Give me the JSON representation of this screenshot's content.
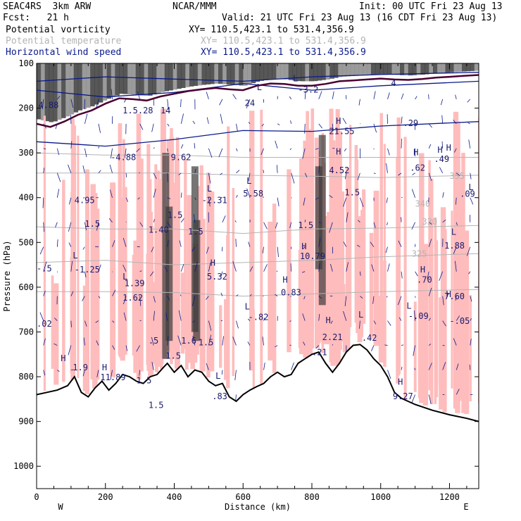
{
  "header": {
    "model": "SEAC4RS  3km ARW",
    "org": "NCAR/MMM",
    "init": "Init: 00 UTC Fri 23 Aug 13",
    "fcst": "Fcst:   21 h",
    "valid": "Valid: 21 UTC Fri 23 Aug 13 (16 CDT Fri 23 Aug 13)"
  },
  "legend": [
    {
      "label": "Potential vorticity",
      "xy": "XY= 110.5,423.1 to 531.4,356.9",
      "color": "#000000"
    },
    {
      "label": "Potential temperature",
      "xy": "XY= 110.5,423.1 to 531.4,356.9",
      "color": "#b4b4b4"
    },
    {
      "label": "Horizontal wind speed",
      "xy": "XY= 110.5,423.1 to 531.4,356.9",
      "color": "#0a1a8c"
    }
  ],
  "colors": {
    "pv_fill": "#ffbcbc",
    "pv_contour": "#4a0030",
    "theta": "#b4b4b4",
    "wind": "#0a1a8c",
    "terrain": "#000000"
  },
  "chart_data": {
    "type": "cross-section",
    "xlabel": "Distance (km)",
    "ylabel": "Pressure (hPa)",
    "xlim": [
      0,
      1285
    ],
    "ylim": [
      1050,
      100
    ],
    "x_ticks": [
      0,
      200,
      400,
      600,
      800,
      1000,
      1200
    ],
    "y_ticks": [
      100,
      200,
      300,
      400,
      500,
      600,
      700,
      800,
      900,
      1000
    ],
    "x_end_labels": {
      "left": "W",
      "right": "E"
    },
    "terrain_pressure": [
      [
        0,
        840
      ],
      [
        30,
        835
      ],
      [
        60,
        830
      ],
      [
        90,
        820
      ],
      [
        110,
        800
      ],
      [
        130,
        835
      ],
      [
        150,
        845
      ],
      [
        170,
        825
      ],
      [
        190,
        810
      ],
      [
        210,
        830
      ],
      [
        230,
        815
      ],
      [
        250,
        795
      ],
      [
        270,
        800
      ],
      [
        290,
        810
      ],
      [
        310,
        815
      ],
      [
        330,
        800
      ],
      [
        350,
        795
      ],
      [
        370,
        778
      ],
      [
        380,
        770
      ],
      [
        400,
        790
      ],
      [
        420,
        775
      ],
      [
        440,
        800
      ],
      [
        460,
        785
      ],
      [
        480,
        790
      ],
      [
        500,
        810
      ],
      [
        520,
        820
      ],
      [
        540,
        815
      ],
      [
        560,
        845
      ],
      [
        580,
        855
      ],
      [
        600,
        840
      ],
      [
        620,
        830
      ],
      [
        640,
        822
      ],
      [
        660,
        815
      ],
      [
        680,
        800
      ],
      [
        700,
        790
      ],
      [
        720,
        800
      ],
      [
        740,
        795
      ],
      [
        760,
        770
      ],
      [
        780,
        760
      ],
      [
        800,
        750
      ],
      [
        820,
        745
      ],
      [
        840,
        770
      ],
      [
        860,
        790
      ],
      [
        880,
        770
      ],
      [
        900,
        745
      ],
      [
        920,
        730
      ],
      [
        940,
        728
      ],
      [
        960,
        740
      ],
      [
        980,
        760
      ],
      [
        1000,
        775
      ],
      [
        1020,
        800
      ],
      [
        1040,
        835
      ],
      [
        1060,
        848
      ],
      [
        1100,
        862
      ],
      [
        1150,
        875
      ],
      [
        1200,
        885
      ],
      [
        1250,
        893
      ],
      [
        1285,
        900
      ]
    ],
    "tropopause_pressure": [
      [
        0,
        235
      ],
      [
        40,
        242
      ],
      [
        80,
        230
      ],
      [
        120,
        215
      ],
      [
        160,
        205
      ],
      [
        200,
        190
      ],
      [
        240,
        178
      ],
      [
        280,
        180
      ],
      [
        320,
        183
      ],
      [
        360,
        174
      ],
      [
        400,
        168
      ],
      [
        440,
        162
      ],
      [
        480,
        158
      ],
      [
        520,
        155
      ],
      [
        560,
        158
      ],
      [
        600,
        160
      ],
      [
        640,
        150
      ],
      [
        680,
        145
      ],
      [
        720,
        146
      ],
      [
        760,
        150
      ],
      [
        800,
        150
      ],
      [
        840,
        146
      ],
      [
        880,
        140
      ],
      [
        920,
        138
      ],
      [
        960,
        136
      ],
      [
        1000,
        134
      ],
      [
        1040,
        136
      ],
      [
        1080,
        137
      ],
      [
        1120,
        135
      ],
      [
        1160,
        132
      ],
      [
        1200,
        130
      ],
      [
        1240,
        128
      ],
      [
        1285,
        126
      ]
    ],
    "theta_contours": [
      {
        "label": "355",
        "label_at": [
          1200,
          358
        ],
        "pts": [
          [
            0,
            345
          ],
          [
            200,
            345
          ],
          [
            400,
            345
          ],
          [
            600,
            350
          ],
          [
            800,
            352
          ],
          [
            1000,
            355
          ],
          [
            1285,
            350
          ]
        ]
      },
      {
        "label": "340",
        "label_at": [
          1100,
          420
        ],
        "pts": [
          [
            0,
            300
          ],
          [
            200,
            305
          ],
          [
            400,
            305
          ],
          [
            600,
            310
          ],
          [
            800,
            310
          ],
          [
            1000,
            310
          ],
          [
            1285,
            310
          ]
        ]
      },
      {
        "label": "330",
        "label_at": [
          1120,
          460
        ],
        "pts": [
          [
            0,
            465
          ],
          [
            200,
            470
          ],
          [
            400,
            470
          ],
          [
            600,
            480
          ],
          [
            800,
            470
          ],
          [
            1000,
            468
          ],
          [
            1285,
            462
          ]
        ]
      },
      {
        "label": "325",
        "label_at": [
          1090,
          532
        ],
        "pts": [
          [
            0,
            545
          ],
          [
            200,
            540
          ],
          [
            400,
            550
          ],
          [
            600,
            545
          ],
          [
            800,
            540
          ],
          [
            1000,
            532
          ],
          [
            1285,
            525
          ]
        ]
      },
      {
        "label": "",
        "label_at": null,
        "pts": [
          [
            0,
            610
          ],
          [
            200,
            610
          ],
          [
            400,
            612
          ],
          [
            600,
            620
          ],
          [
            800,
            615
          ],
          [
            1000,
            610
          ],
          [
            1285,
            605
          ]
        ]
      }
    ],
    "pv_labels": [
      {
        "text": "4.88",
        "at": [
          5,
          200
        ]
      },
      {
        "text": "1.5.28",
        "at": [
          250,
          212
        ]
      },
      {
        "text": "14",
        "at": [
          360,
          212
        ]
      },
      {
        "text": "-4.88",
        "at": [
          215,
          316
        ]
      },
      {
        "text": "9.62",
        "at": [
          390,
          316
        ]
      },
      {
        "text": "L",
        "at": [
          640,
          160
        ]
      },
      {
        "text": "-3.2",
        "at": [
          760,
          165
        ]
      },
      {
        "text": "L",
        "at": [
          745,
          140
        ]
      },
      {
        "text": "4",
        "at": [
          1030,
          150
        ]
      },
      {
        "text": "24",
        "at": [
          605,
          195
        ]
      },
      {
        "text": "H",
        "at": [
          870,
          235
        ]
      },
      {
        "text": "21.55",
        "at": [
          850,
          258
        ]
      },
      {
        "text": ".29",
        "at": [
          1065,
          240
        ]
      },
      {
        "text": "H",
        "at": [
          870,
          304
        ]
      },
      {
        "text": "4.52",
        "at": [
          850,
          345
        ]
      },
      {
        "text": "H",
        "at": [
          1095,
          305
        ]
      },
      {
        "text": ".62",
        "at": [
          1085,
          340
        ]
      },
      {
        "text": "H",
        "at": [
          1165,
          300
        ]
      },
      {
        "text": ".49",
        "at": [
          1155,
          320
        ]
      },
      {
        "text": "H",
        "at": [
          1190,
          295
        ]
      },
      {
        "text": ".09",
        "at": [
          1230,
          398
        ]
      },
      {
        "text": "L",
        "at": [
          1255,
          383
        ]
      },
      {
        "text": "L",
        "at": [
          495,
          386
        ]
      },
      {
        "text": "-2.31",
        "at": [
          480,
          412
        ]
      },
      {
        "text": "L",
        "at": [
          610,
          369
        ]
      },
      {
        "text": "5.58",
        "at": [
          600,
          397
        ]
      },
      {
        "text": "4.95",
        "at": [
          110,
          412
        ]
      },
      {
        "text": "1.5",
        "at": [
          140,
          465
        ]
      },
      {
        "text": "1.5",
        "at": [
          380,
          445
        ]
      },
      {
        "text": "1.40",
        "at": [
          325,
          478
        ]
      },
      {
        "text": "1.5",
        "at": [
          440,
          482
        ]
      },
      {
        "text": "1.5",
        "at": [
          760,
          468
        ]
      },
      {
        "text": "1.5",
        "at": [
          895,
          395
        ]
      },
      {
        "text": "L",
        "at": [
          1205,
          483
        ]
      },
      {
        "text": "1.88",
        "at": [
          1185,
          514
        ]
      },
      {
        "text": "L",
        "at": [
          105,
          536
        ]
      },
      {
        "text": "-1.25",
        "at": [
          110,
          567
        ]
      },
      {
        "text": "-.5",
        "at": [
          0,
          565
        ]
      },
      {
        "text": "H",
        "at": [
          770,
          515
        ]
      },
      {
        "text": "10.79",
        "at": [
          765,
          537
        ]
      },
      {
        "text": "H",
        "at": [
          505,
          552
        ]
      },
      {
        "text": "5.32",
        "at": [
          495,
          583
        ]
      },
      {
        "text": "L",
        "at": [
          250,
          583
        ]
      },
      {
        "text": "1.39",
        "at": [
          255,
          598
        ]
      },
      {
        "text": "1.62",
        "at": [
          250,
          630
        ]
      },
      {
        "text": "H",
        "at": [
          715,
          590
        ]
      },
      {
        "text": "0.83",
        "at": [
          710,
          618
        ]
      },
      {
        "text": "H",
        "at": [
          1115,
          567
        ]
      },
      {
        "text": ".70",
        "at": [
          1105,
          590
        ]
      },
      {
        "text": "H",
        "at": [
          1190,
          622
        ]
      },
      {
        "text": "7.60",
        "at": [
          1185,
          627
        ]
      },
      {
        "text": "L",
        "at": [
          1075,
          648
        ]
      },
      {
        "text": "-.09",
        "at": [
          1080,
          671
        ]
      },
      {
        "text": "-.05",
        "at": [
          1200,
          682
        ]
      },
      {
        "text": "L",
        "at": [
          605,
          650
        ]
      },
      {
        "text": "-.82",
        "at": [
          615,
          673
        ]
      },
      {
        "text": "H",
        "at": [
          840,
          680
        ]
      },
      {
        "text": "2.21",
        "at": [
          830,
          718
        ]
      },
      {
        "text": "L",
        "at": [
          935,
          668
        ]
      },
      {
        "text": ".42",
        "at": [
          945,
          720
        ]
      },
      {
        "text": ".02",
        "at": [
          0,
          688
        ]
      },
      {
        "text": ".5",
        "at": [
          325,
          726
        ]
      },
      {
        "text": "1.6",
        "at": [
          420,
          726
        ]
      },
      {
        "text": "1.5",
        "at": [
          470,
          730
        ]
      },
      {
        "text": "H",
        "at": [
          70,
          765
        ]
      },
      {
        "text": "1.9",
        "at": [
          105,
          786
        ]
      },
      {
        "text": "H",
        "at": [
          190,
          786
        ]
      },
      {
        "text": "11.89",
        "at": [
          185,
          808
        ]
      },
      {
        "text": "1.5",
        "at": [
          375,
          760
        ]
      },
      {
        "text": "H",
        "at": [
          1050,
          818
        ]
      },
      {
        "text": "9.27",
        "at": [
          1035,
          850
        ]
      },
      {
        "text": "1.5",
        "at": [
          325,
          870
        ]
      },
      {
        "text": "L",
        "at": [
          520,
          805
        ]
      },
      {
        "text": ".83",
        "at": [
          510,
          850
        ]
      },
      {
        "text": "1.5",
        "at": [
          290,
          815
        ]
      },
      {
        "text": ".21",
        "at": [
          800,
          752
        ]
      }
    ]
  }
}
